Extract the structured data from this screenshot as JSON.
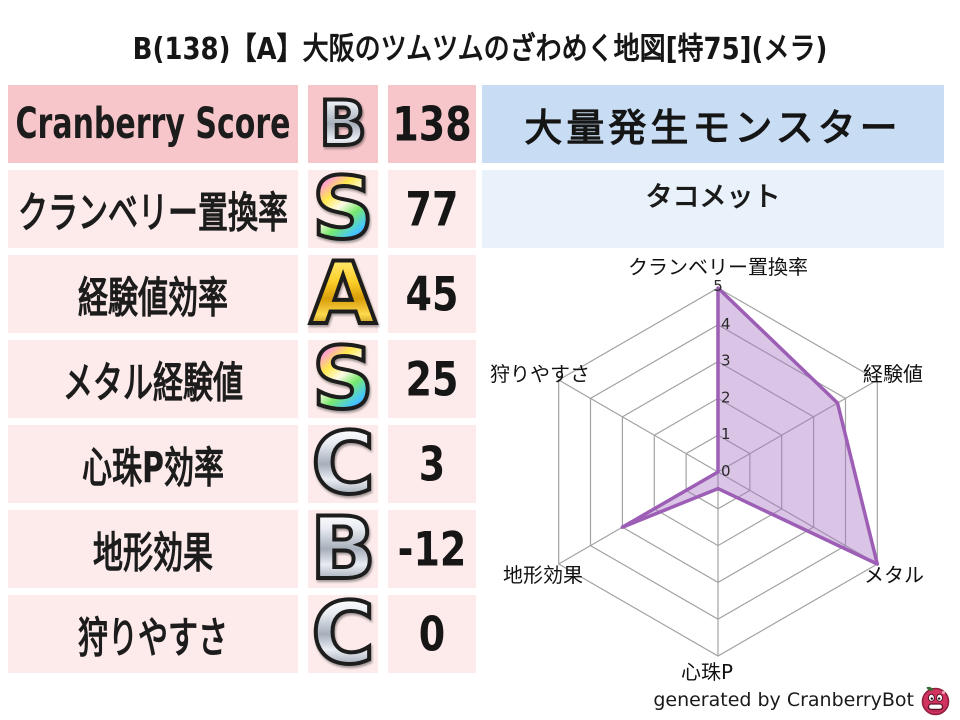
{
  "title": "B(138)【A】大阪のツムツムのざわめく地図[特75](メラ)",
  "stats_table": {
    "rows": [
      {
        "label": "Cranberry Score",
        "grade": "B",
        "grade_style": "silver",
        "value": "138"
      },
      {
        "label": "クランベリー置換率",
        "grade": "S",
        "grade_style": "rainbow",
        "value": "77"
      },
      {
        "label": "経験値効率",
        "grade": "A",
        "grade_style": "gold",
        "value": "45"
      },
      {
        "label": "メタル経験値",
        "grade": "S",
        "grade_style": "rainbow",
        "value": "25"
      },
      {
        "label": "心珠P効率",
        "grade": "C",
        "grade_style": "silver",
        "value": "3"
      },
      {
        "label": "地形効果",
        "grade": "B",
        "grade_style": "silver",
        "value": "-12"
      },
      {
        "label": "狩りやすさ",
        "grade": "C",
        "grade_style": "silver",
        "value": "0"
      }
    ]
  },
  "monster_panel": {
    "header": "大量発生モンスター",
    "value": "タコメット"
  },
  "chart_data": {
    "type": "radar",
    "axes": [
      "クランベリー置換率",
      "経験値",
      "メタル",
      "心珠P",
      "地形効果",
      "狩りやすさ"
    ],
    "values": [
      5,
      3.75,
      5,
      0.45,
      3,
      0
    ],
    "ring_labels": [
      "0",
      "1",
      "2",
      "3",
      "4",
      "5"
    ],
    "range": [
      0,
      5
    ],
    "grid": true,
    "fill_color": "#a675c4",
    "fill_opacity": 0.42,
    "line_color": "#9c5fb5",
    "grid_color": "#a3a3a3",
    "tick_color": "#2a2a2a"
  },
  "footer": {
    "credit": "generated by CranberryBot",
    "logo": "cranberry-bot-icon"
  },
  "colors": {
    "row_highlight_bg": "#f7c6ca",
    "row_bg": "#fdeaea",
    "monster_header_bg": "#c8ddf4",
    "monster_value_bg": "#e9f1fa",
    "berry_body": "#d23360",
    "berry_leaf": "#3a6b35"
  }
}
